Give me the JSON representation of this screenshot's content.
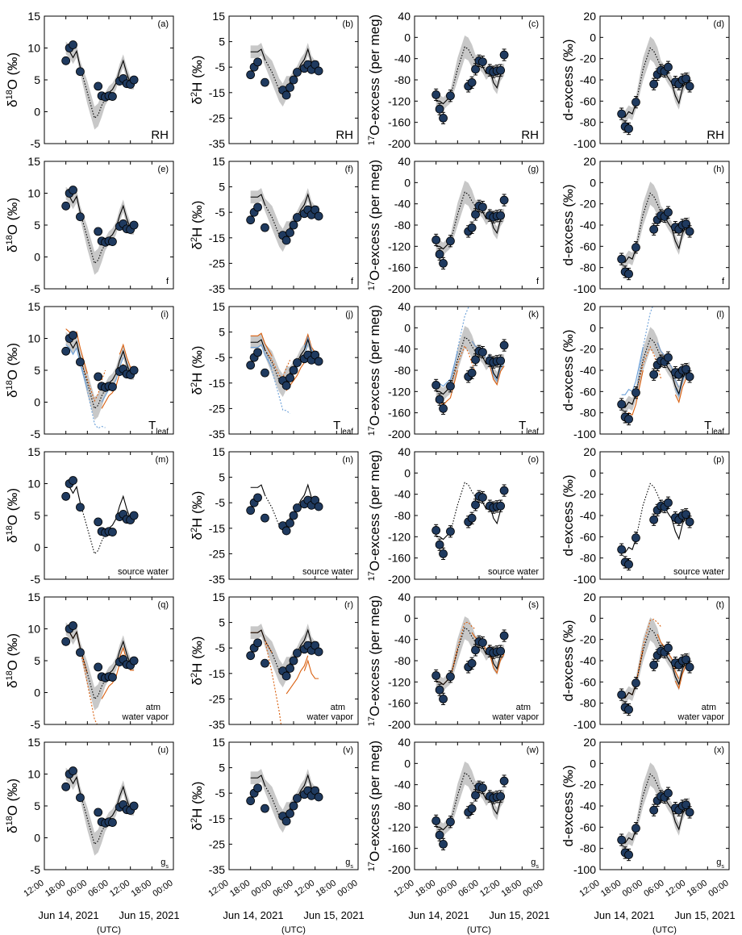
{
  "figure": {
    "x_tick_labels": [
      "12:00",
      "18:00",
      "00:00",
      "06:00",
      "12:00",
      "18:00",
      "00:00"
    ],
    "date_labels": [
      "Jun 14, 2021",
      "Jun 15, 2021"
    ],
    "utc_label": "(UTC)"
  },
  "chart_data": {
    "type": "line",
    "x_unit": "hours since Jun 14, 2021 12:00 UTC",
    "x_range": [
      0,
      36
    ],
    "colors": {
      "observed_marker": "#1f3a5f",
      "model_line": "#000000",
      "alt_orange": "#d95f0e",
      "alt_blue": "#6a9fd8",
      "uncertainty_band": "#c8c8c8"
    },
    "columns": [
      {
        "ylabel": "δ18O (‰)",
        "ylabel_base": "δ",
        "ylabel_sup": "18",
        "ylabel_rest": "O (‰)",
        "sup_first": false,
        "ylim": [
          -5,
          15
        ],
        "ticks": [
          -5,
          0,
          5,
          10,
          15
        ],
        "observed": {
          "x": [
            6,
            7,
            8,
            10,
            15,
            16,
            17,
            18,
            19,
            21,
            22,
            23,
            24,
            25
          ],
          "y": [
            8,
            10,
            10.5,
            6.3,
            4,
            2.5,
            2.3,
            2.5,
            2.4,
            4.8,
            5.2,
            4.4,
            4.3,
            5
          ]
        },
        "model": {
          "x": [
            6,
            7,
            8,
            9,
            10,
            12,
            14,
            15,
            16,
            17,
            18,
            19,
            20,
            21,
            22,
            23,
            24,
            25
          ],
          "y": [
            10,
            9.5,
            8.5,
            9.5,
            7,
            3,
            -1,
            -0.5,
            1,
            2,
            3,
            3.5,
            4.5,
            6.5,
            8,
            6,
            4.5,
            4.5
          ]
        }
      },
      {
        "ylabel": "δ2H (‰)",
        "ylabel_base": "δ",
        "ylabel_sup": "2",
        "ylabel_rest": "H (‰)",
        "sup_first": false,
        "ylim": [
          -35,
          15
        ],
        "ticks": [
          -35,
          -25,
          -15,
          -5,
          5,
          15
        ],
        "observed": {
          "x": [
            6,
            7,
            8,
            10,
            15,
            16,
            17,
            18,
            19,
            21,
            22,
            23,
            24,
            25
          ],
          "y": [
            -8,
            -5,
            -3,
            -11,
            -14,
            -16,
            -13,
            -10,
            -7,
            -5.5,
            -4,
            -6,
            -4,
            -6.5
          ]
        },
        "model": {
          "x": [
            6,
            7,
            8,
            9,
            10,
            12,
            14,
            15,
            16,
            17,
            18,
            19,
            20,
            21,
            22,
            23,
            24,
            25
          ],
          "y": [
            1,
            1,
            1,
            2,
            -2,
            -7,
            -14,
            -16,
            -13,
            -11,
            -9,
            -7,
            -4,
            -2,
            2,
            -3,
            -5,
            -5
          ]
        }
      },
      {
        "ylabel": "17O-excess (per meg)",
        "ylabel_base": "",
        "ylabel_sup": "17",
        "ylabel_rest": "O-excess (per meg)",
        "sup_first": true,
        "ylim": [
          -200,
          40
        ],
        "ticks": [
          -200,
          -160,
          -120,
          -80,
          -40,
          0,
          40
        ],
        "observed": {
          "x": [
            6,
            7,
            8,
            10,
            15,
            16,
            17,
            18,
            19,
            21,
            22,
            23,
            24,
            25
          ],
          "y": [
            -108,
            -135,
            -152,
            -110,
            -92,
            -85,
            -60,
            -44,
            -46,
            -62,
            -65,
            -63,
            -62,
            -33
          ]
        },
        "model": {
          "x": [
            6,
            7,
            8,
            9,
            10,
            12,
            14,
            15,
            16,
            17,
            18,
            19,
            20,
            21,
            22,
            23,
            24,
            25
          ],
          "y": [
            -120,
            -120,
            -125,
            -118,
            -112,
            -60,
            -18,
            -22,
            -35,
            -45,
            -48,
            -55,
            -68,
            -60,
            -85,
            -95,
            -70,
            -60
          ]
        }
      },
      {
        "ylabel": "d-excess (‰)",
        "ylabel_base": "",
        "ylabel_sup": "",
        "ylabel_rest": "d-excess (‰)",
        "sup_first": false,
        "ylim": [
          -100,
          20
        ],
        "ticks": [
          -100,
          -80,
          -60,
          -40,
          -20,
          0,
          20
        ],
        "observed": {
          "x": [
            6,
            7,
            8,
            10,
            15,
            16,
            17,
            18,
            19,
            21,
            22,
            23,
            24,
            25
          ],
          "y": [
            -72,
            -84,
            -86,
            -61,
            -44,
            -35,
            -31,
            -32,
            -28,
            -42,
            -44,
            -40,
            -39,
            -46
          ]
        },
        "model": {
          "x": [
            6,
            7,
            8,
            9,
            10,
            12,
            14,
            15,
            16,
            17,
            18,
            19,
            20,
            21,
            22,
            23,
            24,
            25
          ],
          "y": [
            -75,
            -75,
            -70,
            -72,
            -62,
            -30,
            -10,
            -13,
            -20,
            -28,
            -32,
            -38,
            -43,
            -55,
            -62,
            -48,
            -40,
            -38
          ]
        }
      }
    ],
    "rows": [
      {
        "label": "RH",
        "label_sub": "",
        "panels": [
          "(a)",
          "(b)",
          "(c)",
          "(d)"
        ],
        "band": true
      },
      {
        "label": "f",
        "label_sub": "",
        "panels": [
          "(e)",
          "(f)",
          "(g)",
          "(h)"
        ],
        "band": true
      },
      {
        "label": "T",
        "label_sub": "leaf",
        "panels": [
          "(i)",
          "(j)",
          "(k)",
          "(l)"
        ],
        "band": true,
        "alt_series": [
          {
            "color": "#d95f0e",
            "offsets": [
              [
                1.5,
                2.5,
                -20,
                -10
              ],
              [
                1.5,
                2.5,
                -20,
                -10
              ],
              [
                -2,
                -5,
                10,
                6
              ],
              [
                1,
                2,
                -12,
                -8
              ],
              [
                -1,
                -3,
                15,
                10
              ]
            ]
          },
          {
            "color": "#6a9fd8",
            "offsets": [
              [
                -1,
                -2,
                15,
                12
              ],
              [
                -3,
                -8,
                50,
                30
              ],
              [
                -1,
                -2,
                10,
                6
              ],
              [
                0,
                1,
                -5,
                -2
              ],
              [
                0,
                0,
                0,
                0
              ]
            ]
          }
        ]
      },
      {
        "label": "source water",
        "label_sub": "",
        "panels": [
          "(m)",
          "(n)",
          "(o)",
          "(p)"
        ],
        "band": false
      },
      {
        "label": "atm\nwater vapor",
        "label_sub": "",
        "panels": [
          "(q)",
          "(r)",
          "(s)",
          "(t)"
        ],
        "band": true,
        "alt_series": [
          {
            "color": "#d95f0e",
            "offsets": [
              [
                0,
                0,
                0,
                0
              ],
              [
                -4,
                -20,
                12,
                10
              ],
              [
                -2,
                -10,
                8,
                5
              ],
              [
                -1,
                -12,
                -8,
                -4
              ],
              [
                -3,
                -14,
                5,
                5
              ]
            ]
          }
        ]
      },
      {
        "label": "g",
        "label_sub": "s",
        "panels": [
          "(u)",
          "(v)",
          "(w)",
          "(x)"
        ],
        "band": true
      }
    ]
  }
}
